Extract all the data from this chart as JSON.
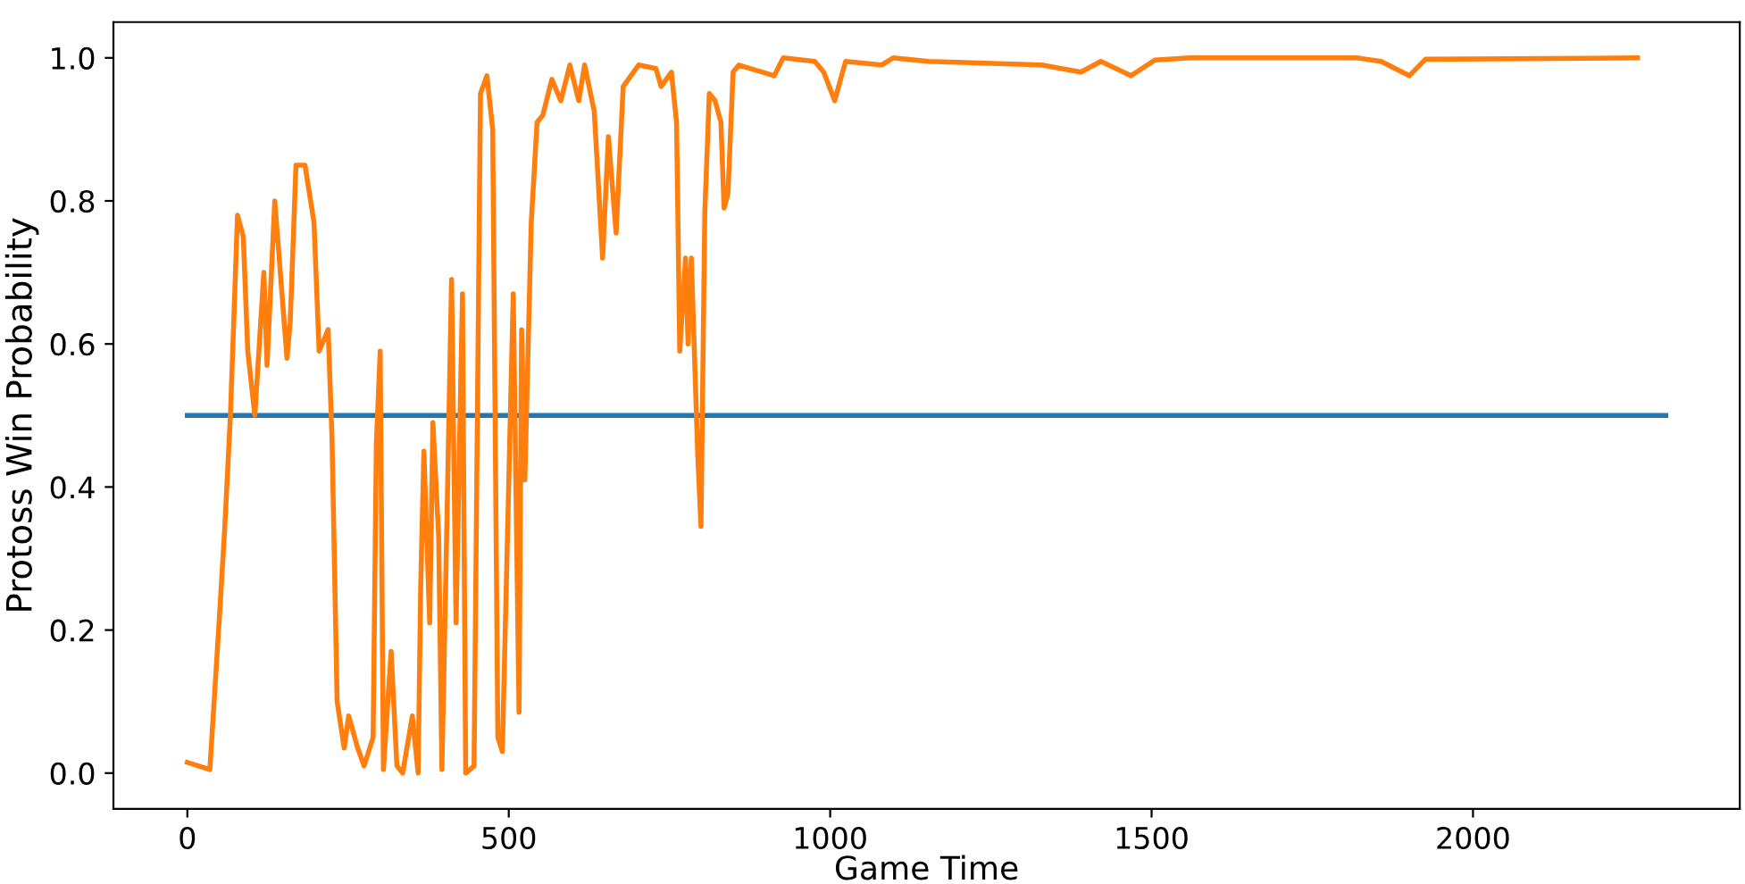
{
  "chart_data": {
    "type": "line",
    "xlabel": "Game Time",
    "ylabel": "Protoss Win Probability",
    "xlim": [
      -115,
      2415
    ],
    "ylim": [
      -0.05,
      1.05
    ],
    "xticks": [
      0,
      500,
      1000,
      1500,
      2000
    ],
    "yticks": [
      {
        "value": 0,
        "label": "0.0"
      },
      0.2,
      0.4,
      0.6,
      0.8,
      {
        "value": 1,
        "label": "1.0"
      }
    ],
    "grid": false,
    "marker": "none",
    "line_style": "solid",
    "series": [
      {
        "color": "#1f77b4",
        "x": [
          0,
          2300
        ],
        "values": [
          0.5,
          0.5
        ]
      },
      {
        "color": "#ff7f0e",
        "x": [
          0,
          35,
          50,
          58,
          67,
          78,
          87,
          94,
          105,
          119,
          124,
          136,
          155,
          160,
          169,
          183,
          197,
          205,
          219,
          225,
          233,
          244,
          251,
          265,
          275,
          289,
          294,
          300,
          305,
          317,
          326,
          335,
          350,
          359,
          363,
          368,
          377,
          382,
          391,
          396,
          404,
          411,
          418,
          428,
          433,
          446,
          456,
          466,
          475,
          483,
          490,
          507,
          516,
          520,
          525,
          535,
          544,
          553,
          567,
          581,
          595,
          609,
          618,
          633,
          646,
          655,
          667,
          678,
          702,
          729,
          737,
          753,
          761,
          766,
          775,
          779,
          784,
          794,
          799,
          805,
          812,
          821,
          830,
          835,
          841,
          849,
          858,
          876,
          895,
          913,
          927,
          976,
          990,
          1007,
          1024,
          1080,
          1098,
          1153,
          1329,
          1390,
          1421,
          1468,
          1505,
          1560,
          1819,
          1857,
          1901,
          1926,
          2256
        ],
        "values": [
          0.015,
          0.005,
          0.22,
          0.34,
          0.5,
          0.78,
          0.75,
          0.59,
          0.5,
          0.7,
          0.57,
          0.8,
          0.58,
          0.63,
          0.85,
          0.85,
          0.77,
          0.59,
          0.62,
          0.47,
          0.1,
          0.035,
          0.08,
          0.035,
          0.01,
          0.05,
          0.46,
          0.59,
          0.005,
          0.17,
          0.01,
          0.0,
          0.08,
          0.0,
          0.26,
          0.45,
          0.21,
          0.49,
          0.33,
          0.005,
          0.36,
          0.69,
          0.21,
          0.67,
          0.0,
          0.01,
          0.95,
          0.975,
          0.9,
          0.05,
          0.03,
          0.67,
          0.085,
          0.62,
          0.41,
          0.77,
          0.91,
          0.92,
          0.97,
          0.94,
          0.99,
          0.94,
          0.99,
          0.925,
          0.72,
          0.89,
          0.755,
          0.96,
          0.99,
          0.985,
          0.96,
          0.98,
          0.91,
          0.59,
          0.72,
          0.6,
          0.72,
          0.445,
          0.345,
          0.785,
          0.95,
          0.94,
          0.91,
          0.79,
          0.81,
          0.98,
          0.99,
          0.985,
          0.98,
          0.975,
          1.0,
          0.995,
          0.98,
          0.94,
          0.995,
          0.99,
          1.0,
          0.995,
          0.99,
          0.98,
          0.995,
          0.975,
          0.997,
          1.0,
          1.0,
          0.995,
          0.975,
          0.998,
          1.0
        ]
      }
    ]
  }
}
